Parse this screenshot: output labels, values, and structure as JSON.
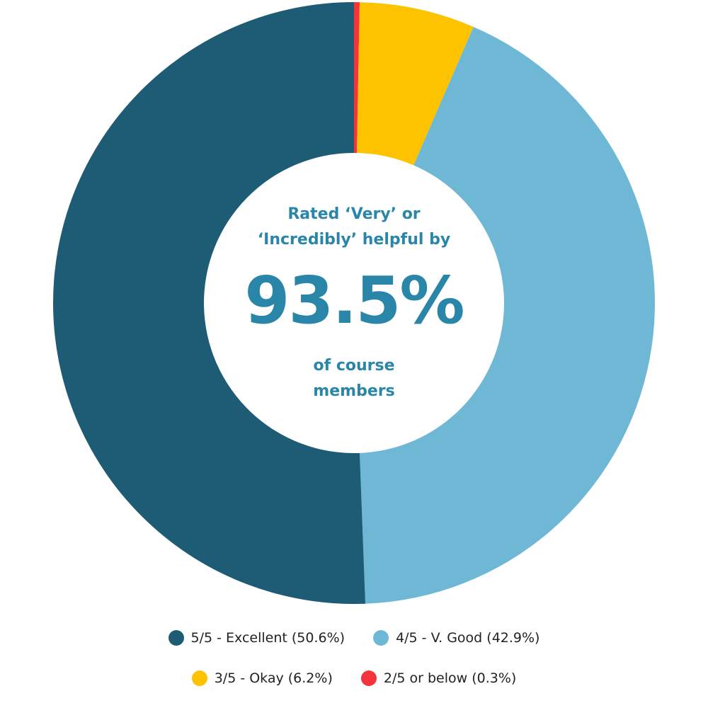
{
  "chart_data": {
    "type": "pie",
    "donut": true,
    "start": "top",
    "direction": "clockwise",
    "series": [
      {
        "name": "2/5 or below (0.3%)",
        "value": 0.3,
        "color": "#f4333a"
      },
      {
        "name": "3/5 - Okay (6.2%)",
        "value": 6.2,
        "color": "#fdc200"
      },
      {
        "name": "4/5 - V. Good (42.9%)",
        "value": 42.9,
        "color": "#6fb8d5"
      },
      {
        "name": "5/5 - Excellent (50.6%)",
        "value": 50.6,
        "color": "#1d5c74"
      }
    ],
    "legend_placement": "bottom",
    "center_text": {
      "line1": "Rated ‘Very’ or",
      "line2": "‘Incredibly’ helpful by",
      "value": "93.5%",
      "line3": "of course",
      "line4": "members"
    },
    "text_color": "#2a86a8"
  }
}
